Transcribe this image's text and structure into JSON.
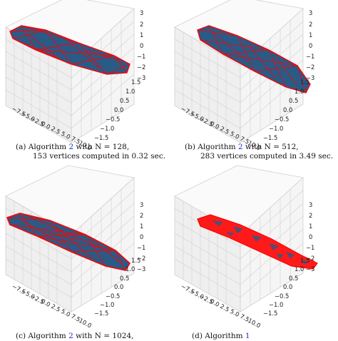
{
  "panels": [
    {
      "id": "a",
      "caption": {
        "prefix": "(a) Algorithm ",
        "ref": "2",
        "suffix": " with N = 128,",
        "line2": "153 vertices computed in 0.32 sec."
      },
      "tick_labels": {
        "z": [
          "3",
          "2",
          "1",
          "0",
          "−1",
          "−2",
          "−3"
        ],
        "x": [
          "−7.5",
          "−5.0",
          "−2.5",
          "0.0",
          "2.5",
          "5.0",
          "7.5",
          "10.0"
        ],
        "y": [
          "1.5",
          "1.0",
          "0.5",
          "0.0",
          "−0.5",
          "−1.0",
          "−1.5"
        ]
      }
    },
    {
      "id": "b",
      "caption": {
        "prefix": "(b) Algorithm ",
        "ref": "2",
        "suffix": " with N = 512,",
        "line2": "283 vertices computed in 3.49 sec."
      },
      "tick_labels": {
        "z": [
          "3",
          "2",
          "1",
          "0",
          "−1",
          "−2",
          "−3"
        ],
        "x": [
          "−7.5",
          "−5.0",
          "−2.5",
          "0.0",
          "2.5",
          "5.0",
          "7.5",
          "10.0"
        ],
        "y": [
          "1.5",
          "1.0",
          "0.5",
          "0.0",
          "−0.5",
          "−1.0",
          "−1.5"
        ]
      }
    },
    {
      "id": "c",
      "caption": {
        "prefix": "(c) Algorithm ",
        "ref": "2",
        "suffix": " with N = 1024,",
        "line2": ""
      },
      "tick_labels": {
        "z": [
          "3",
          "2",
          "1",
          "0",
          "−1",
          "−2",
          "−3"
        ],
        "x": [
          "−7.5",
          "−5.0",
          "−2.5",
          "0.0",
          "2.5",
          "5.0",
          "7.5",
          "10.0"
        ],
        "y": [
          "1.5",
          "1.0",
          "0.5",
          "0.0",
          "−0.5",
          "−1.0",
          "−1.5"
        ]
      }
    },
    {
      "id": "d",
      "caption": {
        "prefix": "(d) Algorithm ",
        "ref": "1",
        "suffix": "",
        "line2": ""
      },
      "tick_labels": {
        "z": [
          "3",
          "2",
          "1",
          "0",
          "−1",
          "−2",
          "−3"
        ],
        "x": [
          "−7.5",
          "−5.0",
          "−2.5",
          "0.0",
          "2.5",
          "5.0",
          "7.5",
          "10.0"
        ],
        "y": [
          "1.5",
          "1.0",
          "0.5",
          "0.0",
          "−0.5",
          "−1.0",
          "−1.5"
        ]
      }
    }
  ],
  "colors": {
    "face": "#2a5a86",
    "edge": "#ff0000",
    "pane": "#f2f2f2",
    "grid": "#c8c8c8"
  }
}
